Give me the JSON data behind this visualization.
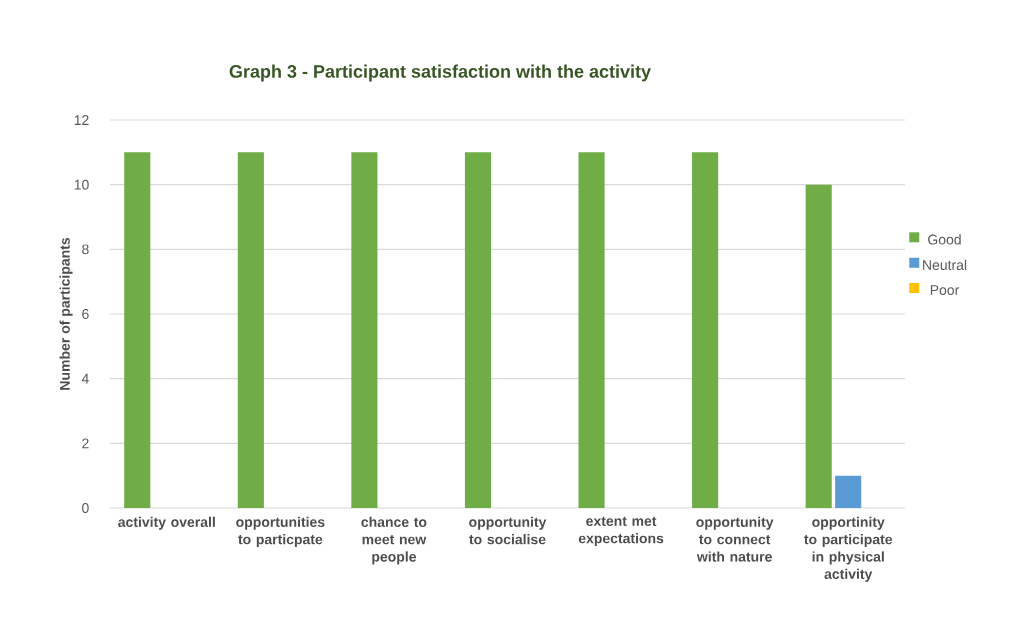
{
  "chart_data": {
    "type": "bar",
    "title": "Graph 3 - Participant satisfaction with the activity",
    "ylabel": "Number of participants",
    "categories": [
      "activity overall",
      "opportunities to particpate",
      "chance to meet new people",
      "opportunity to socialise",
      "extent met expectations",
      "opportunity to connect with nature",
      "opportinity to participate in physical activity"
    ],
    "series": [
      {
        "name": "Good",
        "color": "#70ad47",
        "values": [
          11,
          11,
          11,
          11,
          11,
          11,
          10
        ]
      },
      {
        "name": "Neutral",
        "color": "#5b9bd5",
        "values": [
          0,
          0,
          0,
          0,
          0,
          0,
          1
        ]
      },
      {
        "name": "Poor",
        "color": "#ffc000",
        "values": [
          0,
          0,
          0,
          0,
          0,
          0,
          0
        ]
      }
    ],
    "ylim": [
      0,
      12
    ],
    "yticks": [
      0,
      2,
      4,
      6,
      8,
      10,
      12
    ],
    "grid": "y",
    "legend": "right"
  }
}
